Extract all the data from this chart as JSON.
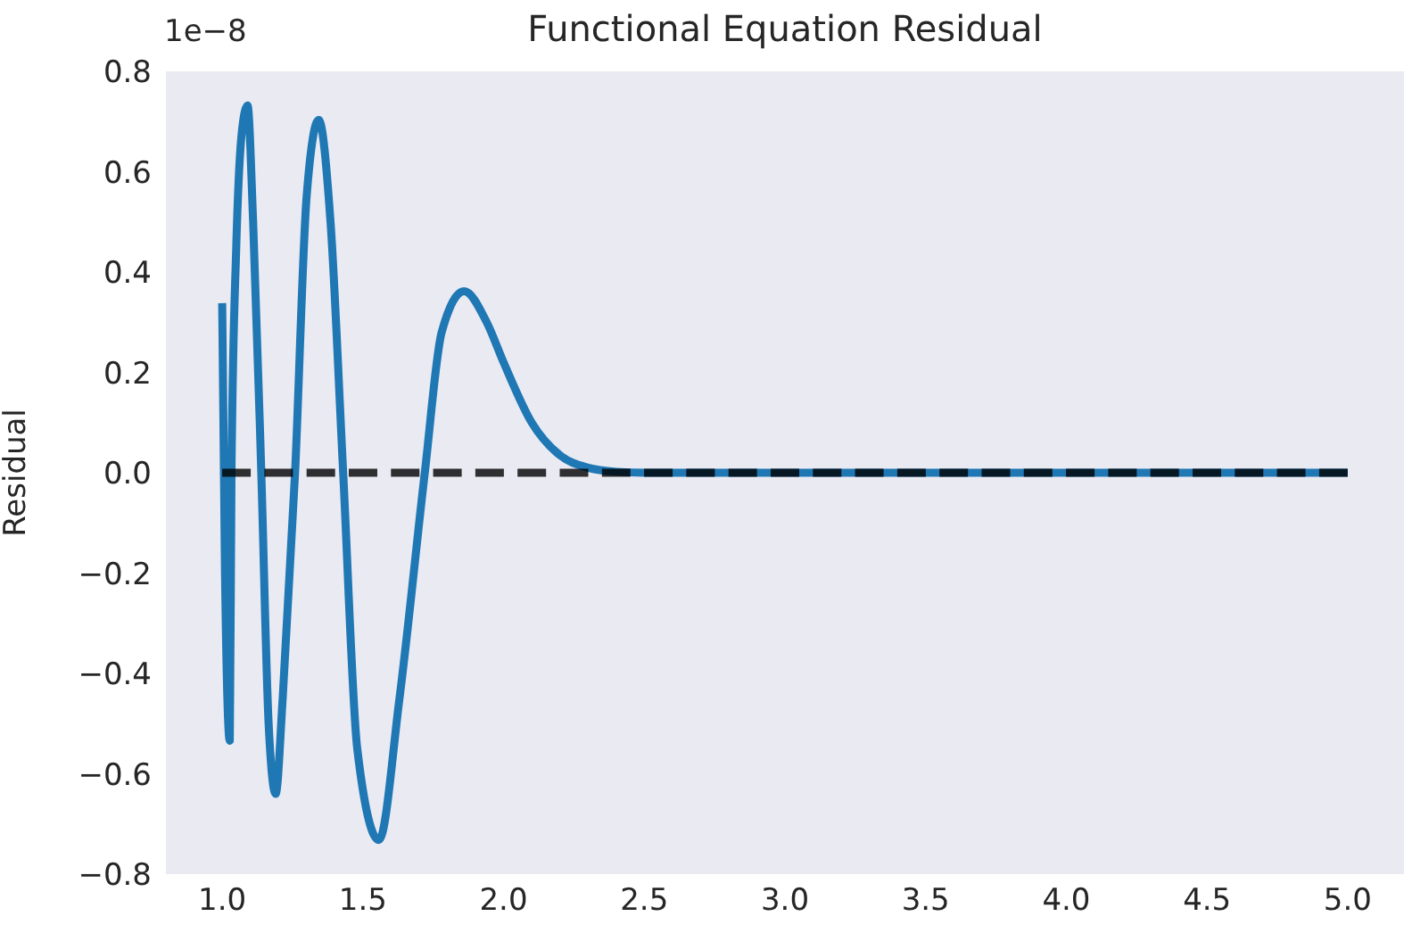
{
  "chart_data": {
    "type": "line",
    "title": "Functional Equation Residual",
    "ylabel": "Residual",
    "annotations": [
      "1e−8"
    ],
    "xlim": [
      0.8,
      5.2
    ],
    "xticks": [
      {
        "value": 1,
        "label": "1.0"
      },
      1.5,
      {
        "value": 2,
        "label": "2.0"
      },
      2.5,
      {
        "value": 3,
        "label": "3.0"
      },
      3.5,
      {
        "value": 4,
        "label": "4.0"
      },
      4.5,
      {
        "value": 5,
        "label": "5.0"
      }
    ],
    "ylim": [
      -0.8,
      0.8
    ],
    "yticks": [
      -0.8,
      -0.6,
      -0.4,
      -0.2,
      {
        "value": 0,
        "label": "0.0"
      },
      0.2,
      0.4,
      0.6,
      0.8
    ],
    "series": [
      {
        "color": "#1f77b4",
        "line_style": "solid",
        "x": [
          1.0,
          1.01,
          1.027,
          1.033,
          1.05,
          1.07,
          1.09,
          1.11,
          1.139,
          1.165,
          1.19,
          1.215,
          1.259,
          1.3,
          1.343,
          1.385,
          1.43,
          1.48,
          1.557,
          1.63,
          1.72,
          1.78,
          1.86,
          1.94,
          2.0,
          2.1,
          2.2,
          2.3,
          2.4,
          2.5,
          3.0,
          4.0,
          5.0
        ],
        "values": [
          0.338,
          -0.2,
          -0.534,
          0,
          0.45,
          0.68,
          0.732,
          0.5,
          0,
          -0.5,
          -0.64,
          -0.45,
          0,
          0.55,
          0.703,
          0.5,
          0,
          -0.55,
          -0.732,
          -0.45,
          0,
          0.28,
          0.362,
          0.3,
          0.22,
          0.1,
          0.035,
          0.01,
          0.002,
          0,
          0,
          0,
          0
        ]
      },
      {
        "color": "#000000",
        "line_style": "dashed",
        "x": [
          1.0,
          5.0
        ],
        "values": [
          0,
          0
        ]
      }
    ]
  }
}
